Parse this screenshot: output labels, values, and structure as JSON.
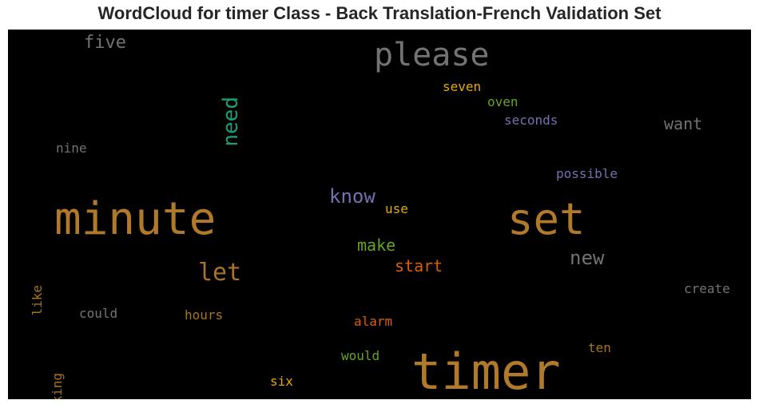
{
  "chart_data": {
    "type": "wordcloud",
    "title": "WordCloud for timer Class - Back Translation-French Validation Set",
    "background": "#000000",
    "words": [
      {
        "text": "timer",
        "weight": 62,
        "color": "#b07a2a"
      },
      {
        "text": "minute",
        "weight": 56,
        "color": "#b07a2a"
      },
      {
        "text": "set",
        "weight": 54,
        "color": "#b07a2a"
      },
      {
        "text": "please",
        "weight": 40,
        "color": "#737373"
      },
      {
        "text": "let",
        "weight": 30,
        "color": "#a8742a"
      },
      {
        "text": "need",
        "weight": 26,
        "color": "#1b9e77"
      },
      {
        "text": "know",
        "weight": 24,
        "color": "#7570b3"
      },
      {
        "text": "new",
        "weight": 24,
        "color": "#737373"
      },
      {
        "text": "five",
        "weight": 22,
        "color": "#737373"
      },
      {
        "text": "make",
        "weight": 20,
        "color": "#66a61e"
      },
      {
        "text": "start",
        "weight": 20,
        "color": "#d95f02"
      },
      {
        "text": "want",
        "weight": 20,
        "color": "#737373"
      },
      {
        "text": "seven",
        "weight": 16,
        "color": "#e6ab02"
      },
      {
        "text": "oven",
        "weight": 16,
        "color": "#66a61e"
      },
      {
        "text": "seconds",
        "weight": 16,
        "color": "#7570b3"
      },
      {
        "text": "possible",
        "weight": 16,
        "color": "#7570b3"
      },
      {
        "text": "nine",
        "weight": 16,
        "color": "#737373"
      },
      {
        "text": "use",
        "weight": 16,
        "color": "#e6ab02"
      },
      {
        "text": "like",
        "weight": 16,
        "color": "#a6761d"
      },
      {
        "text": "create",
        "weight": 16,
        "color": "#737373"
      },
      {
        "text": "could",
        "weight": 16,
        "color": "#737373"
      },
      {
        "text": "hours",
        "weight": 16,
        "color": "#a6761d"
      },
      {
        "text": "cooking",
        "weight": 16,
        "color": "#a6761d"
      },
      {
        "text": "alarm",
        "weight": 16,
        "color": "#d95f02"
      },
      {
        "text": "ten",
        "weight": 16,
        "color": "#a6761d"
      },
      {
        "text": "would",
        "weight": 16,
        "color": "#66a61e"
      },
      {
        "text": "six",
        "weight": 16,
        "color": "#e6ab02"
      }
    ]
  }
}
